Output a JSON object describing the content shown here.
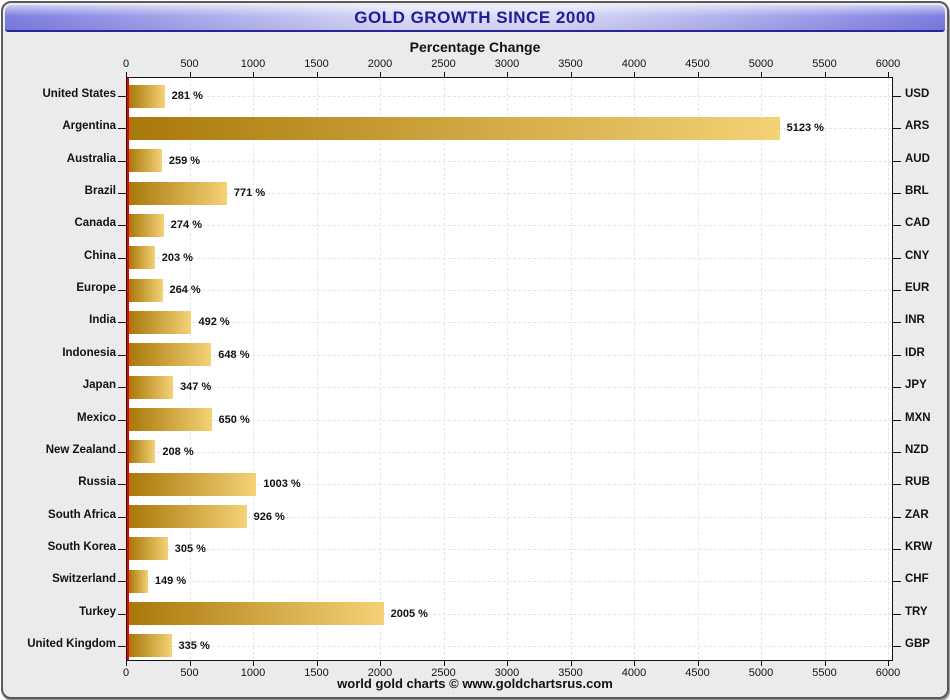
{
  "title": "GOLD GROWTH SINCE 2000",
  "subtitle": "Percentage Change",
  "footer": "world gold charts © www.goldchartsrus.com",
  "colors": {
    "bar_gradient_start": "#a9780a",
    "bar_gradient_end": "#f4d276",
    "grid": "#d9e7f6",
    "zero_line": "#ee0000",
    "title_text": "#1e1e96",
    "titlebar_edge": "#7d7de2",
    "titlebar_center": "#dadaf8",
    "frame_background": "#ececec",
    "plot_background": "#ffffff"
  },
  "chart_data": {
    "type": "bar",
    "orientation": "horizontal",
    "title": "GOLD GROWTH SINCE 2000",
    "axis_title": "Percentage Change",
    "categories": [
      "United States",
      "Argentina",
      "Australia",
      "Brazil",
      "Canada",
      "China",
      "Europe",
      "India",
      "Indonesia",
      "Japan",
      "Mexico",
      "New Zealand",
      "Russia",
      "South Africa",
      "South Korea",
      "Switzerland",
      "Turkey",
      "United Kingdom"
    ],
    "currency_labels": [
      "USD",
      "ARS",
      "AUD",
      "BRL",
      "CAD",
      "CNY",
      "EUR",
      "INR",
      "IDR",
      "JPY",
      "MXN",
      "NZD",
      "RUB",
      "ZAR",
      "KRW",
      "CHF",
      "TRY",
      "GBP"
    ],
    "values": [
      281,
      5123,
      259,
      771,
      274,
      203,
      264,
      492,
      648,
      347,
      650,
      208,
      1003,
      926,
      305,
      149,
      2005,
      335
    ],
    "value_suffix": " %",
    "xlim": [
      0,
      6000
    ],
    "x_ticks": [
      0,
      500,
      1000,
      1500,
      2000,
      2500,
      3000,
      3500,
      4000,
      4500,
      5000,
      5500,
      6000
    ],
    "grid": true,
    "legend": "none"
  }
}
